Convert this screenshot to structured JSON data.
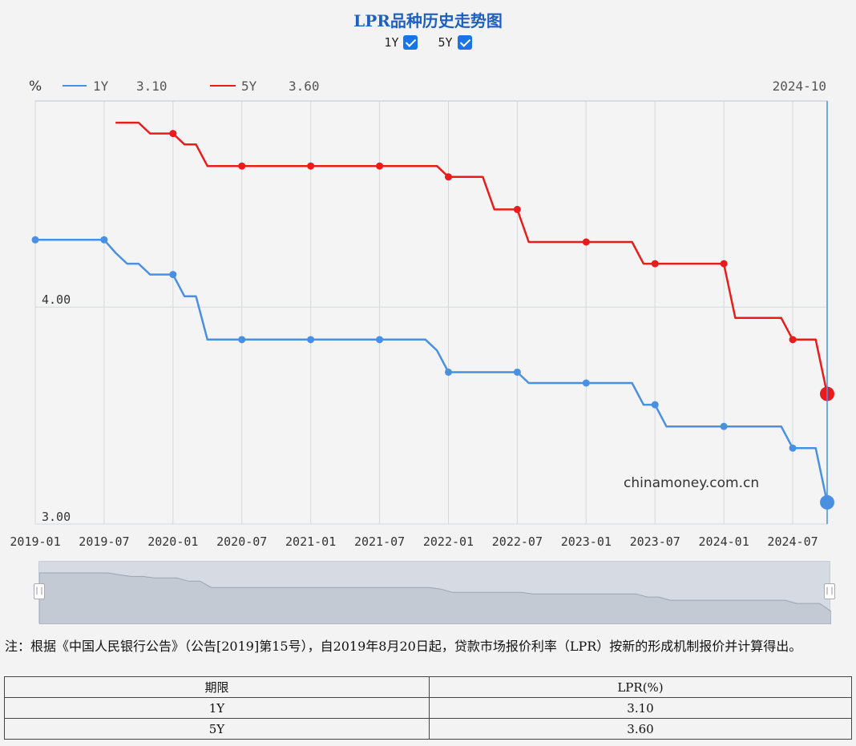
{
  "title": "LPR品种历史走势图",
  "toggles": [
    {
      "label": "1Y",
      "checked": true
    },
    {
      "label": "5Y",
      "checked": true
    }
  ],
  "chart_data": {
    "type": "line",
    "yunit": "%",
    "current_date_label": "2024-10",
    "watermark": "chinamoney.com.cn",
    "x_ticks": [
      "2019-01",
      "2019-07",
      "2020-01",
      "2020-07",
      "2021-01",
      "2021-07",
      "2022-01",
      "2022-07",
      "2023-01",
      "2023-07",
      "2024-01",
      "2024-07"
    ],
    "y_ticks": [
      {
        "value": 3.0,
        "label": "3.00"
      },
      {
        "value": 4.0,
        "label": "4.00"
      }
    ],
    "ylim": [
      3.0,
      4.95
    ],
    "xlim": [
      "2019-01",
      "2024-10"
    ],
    "grid": true,
    "series": [
      {
        "name": "1Y",
        "current": "3.10",
        "color": "#4a90e2",
        "points": [
          [
            "2019-01",
            4.31
          ],
          [
            "2019-07",
            4.31
          ],
          [
            "2019-08",
            4.25
          ],
          [
            "2019-09",
            4.2
          ],
          [
            "2019-10",
            4.2
          ],
          [
            "2019-11",
            4.15
          ],
          [
            "2019-12",
            4.15
          ],
          [
            "2020-01",
            4.15
          ],
          [
            "2020-02",
            4.05
          ],
          [
            "2020-03",
            4.05
          ],
          [
            "2020-04",
            3.85
          ],
          [
            "2020-05",
            3.85
          ],
          [
            "2020-06",
            3.85
          ],
          [
            "2020-07",
            3.85
          ],
          [
            "2020-08",
            3.85
          ],
          [
            "2020-09",
            3.85
          ],
          [
            "2020-10",
            3.85
          ],
          [
            "2020-11",
            3.85
          ],
          [
            "2020-12",
            3.85
          ],
          [
            "2021-01",
            3.85
          ],
          [
            "2021-02",
            3.85
          ],
          [
            "2021-03",
            3.85
          ],
          [
            "2021-04",
            3.85
          ],
          [
            "2021-05",
            3.85
          ],
          [
            "2021-06",
            3.85
          ],
          [
            "2021-07",
            3.85
          ],
          [
            "2021-08",
            3.85
          ],
          [
            "2021-09",
            3.85
          ],
          [
            "2021-10",
            3.85
          ],
          [
            "2021-11",
            3.85
          ],
          [
            "2021-12",
            3.8
          ],
          [
            "2022-01",
            3.7
          ],
          [
            "2022-02",
            3.7
          ],
          [
            "2022-03",
            3.7
          ],
          [
            "2022-04",
            3.7
          ],
          [
            "2022-05",
            3.7
          ],
          [
            "2022-06",
            3.7
          ],
          [
            "2022-07",
            3.7
          ],
          [
            "2022-08",
            3.65
          ],
          [
            "2022-09",
            3.65
          ],
          [
            "2022-10",
            3.65
          ],
          [
            "2022-11",
            3.65
          ],
          [
            "2022-12",
            3.65
          ],
          [
            "2023-01",
            3.65
          ],
          [
            "2023-02",
            3.65
          ],
          [
            "2023-03",
            3.65
          ],
          [
            "2023-04",
            3.65
          ],
          [
            "2023-05",
            3.65
          ],
          [
            "2023-06",
            3.55
          ],
          [
            "2023-07",
            3.55
          ],
          [
            "2023-08",
            3.45
          ],
          [
            "2023-09",
            3.45
          ],
          [
            "2023-10",
            3.45
          ],
          [
            "2023-11",
            3.45
          ],
          [
            "2023-12",
            3.45
          ],
          [
            "2024-01",
            3.45
          ],
          [
            "2024-02",
            3.45
          ],
          [
            "2024-03",
            3.45
          ],
          [
            "2024-04",
            3.45
          ],
          [
            "2024-05",
            3.45
          ],
          [
            "2024-06",
            3.45
          ],
          [
            "2024-07",
            3.35
          ],
          [
            "2024-08",
            3.35
          ],
          [
            "2024-09",
            3.35
          ],
          [
            "2024-10",
            3.1
          ]
        ]
      },
      {
        "name": "5Y",
        "current": "3.60",
        "color": "#e81c1c",
        "points": [
          [
            "2019-08",
            4.85
          ],
          [
            "2019-09",
            4.85
          ],
          [
            "2019-10",
            4.85
          ],
          [
            "2019-11",
            4.8
          ],
          [
            "2019-12",
            4.8
          ],
          [
            "2020-01",
            4.8
          ],
          [
            "2020-02",
            4.75
          ],
          [
            "2020-03",
            4.75
          ],
          [
            "2020-04",
            4.65
          ],
          [
            "2020-05",
            4.65
          ],
          [
            "2020-06",
            4.65
          ],
          [
            "2020-07",
            4.65
          ],
          [
            "2020-08",
            4.65
          ],
          [
            "2020-09",
            4.65
          ],
          [
            "2020-10",
            4.65
          ],
          [
            "2020-11",
            4.65
          ],
          [
            "2020-12",
            4.65
          ],
          [
            "2021-01",
            4.65
          ],
          [
            "2021-02",
            4.65
          ],
          [
            "2021-03",
            4.65
          ],
          [
            "2021-04",
            4.65
          ],
          [
            "2021-05",
            4.65
          ],
          [
            "2021-06",
            4.65
          ],
          [
            "2021-07",
            4.65
          ],
          [
            "2021-08",
            4.65
          ],
          [
            "2021-09",
            4.65
          ],
          [
            "2021-10",
            4.65
          ],
          [
            "2021-11",
            4.65
          ],
          [
            "2021-12",
            4.65
          ],
          [
            "2022-01",
            4.6
          ],
          [
            "2022-02",
            4.6
          ],
          [
            "2022-03",
            4.6
          ],
          [
            "2022-04",
            4.6
          ],
          [
            "2022-05",
            4.45
          ],
          [
            "2022-06",
            4.45
          ],
          [
            "2022-07",
            4.45
          ],
          [
            "2022-08",
            4.3
          ],
          [
            "2022-09",
            4.3
          ],
          [
            "2022-10",
            4.3
          ],
          [
            "2022-11",
            4.3
          ],
          [
            "2022-12",
            4.3
          ],
          [
            "2023-01",
            4.3
          ],
          [
            "2023-02",
            4.3
          ],
          [
            "2023-03",
            4.3
          ],
          [
            "2023-04",
            4.3
          ],
          [
            "2023-05",
            4.3
          ],
          [
            "2023-06",
            4.2
          ],
          [
            "2023-07",
            4.2
          ],
          [
            "2023-08",
            4.2
          ],
          [
            "2023-09",
            4.2
          ],
          [
            "2023-10",
            4.2
          ],
          [
            "2023-11",
            4.2
          ],
          [
            "2023-12",
            4.2
          ],
          [
            "2024-01",
            4.2
          ],
          [
            "2024-02",
            3.95
          ],
          [
            "2024-03",
            3.95
          ],
          [
            "2024-04",
            3.95
          ],
          [
            "2024-05",
            3.95
          ],
          [
            "2024-06",
            3.95
          ],
          [
            "2024-07",
            3.85
          ],
          [
            "2024-08",
            3.85
          ],
          [
            "2024-09",
            3.85
          ],
          [
            "2024-10",
            3.6
          ]
        ]
      }
    ]
  },
  "note": "注：根据《中国人民银行公告》（公告[2019]第15号），自2019年8月20日起，贷款市场报价利率（LPR）按新的形成机制报价并计算得出。",
  "table": {
    "headers": [
      "期限",
      "LPR(%)"
    ],
    "rows": [
      [
        "1Y",
        "3.10"
      ],
      [
        "5Y",
        "3.60"
      ]
    ]
  }
}
